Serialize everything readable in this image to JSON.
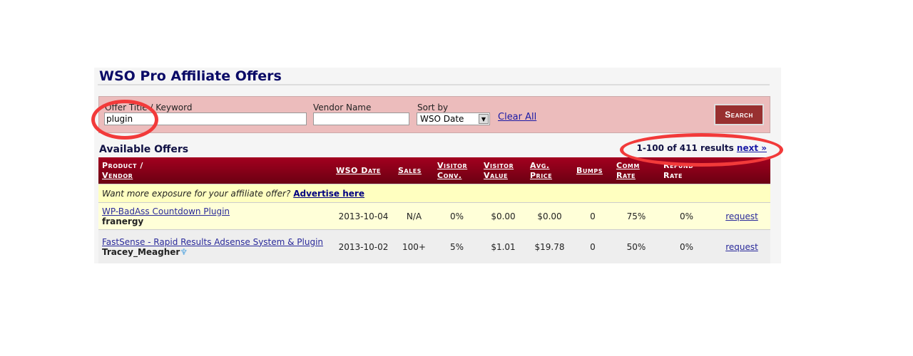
{
  "page": {
    "title": "WSO Pro Affiliate Offers"
  },
  "search": {
    "keyword_label": "Offer Title / Keyword",
    "keyword_value": "plugin",
    "vendor_label": "Vendor Name",
    "vendor_value": "",
    "sort_label": "Sort by",
    "sort_value": "WSO Date",
    "clear_label": "Clear All",
    "search_label": "Search"
  },
  "offers": {
    "heading": "Available Offers",
    "results_text": "1-100 of 411 results",
    "next_label": "next »",
    "columns": [
      "Product /",
      "Vendor",
      "WSO Date",
      "Sales",
      "Visitor",
      "Conv.",
      "Visitor",
      "Value",
      "Avg.",
      "Price",
      "Bumps",
      "Comm",
      "Rate",
      "Refund",
      "Rate"
    ],
    "ad_text": "Want more exposure for your affiliate offer?",
    "ad_link": "Advertise here",
    "rows": [
      {
        "product": "WP-BadAss Countdown Plugin",
        "vendor": "franergy",
        "date": "2013-10-04",
        "sales": "N/A",
        "conv": "0%",
        "value": "$0.00",
        "price": "$0.00",
        "bumps": "0",
        "comm": "75%",
        "refund": "0%",
        "action": "request"
      },
      {
        "product": "FastSense - Rapid Results Adsense System & Plugin",
        "vendor": "Tracey_Meagher",
        "date": "2013-10-02",
        "sales": "100+",
        "conv": "5%",
        "value": "$1.01",
        "price": "$19.78",
        "bumps": "0",
        "comm": "50%",
        "refund": "0%",
        "action": "request",
        "badge_icon": "medal-icon"
      }
    ]
  },
  "annotations": {
    "color": "#f23a3a"
  }
}
